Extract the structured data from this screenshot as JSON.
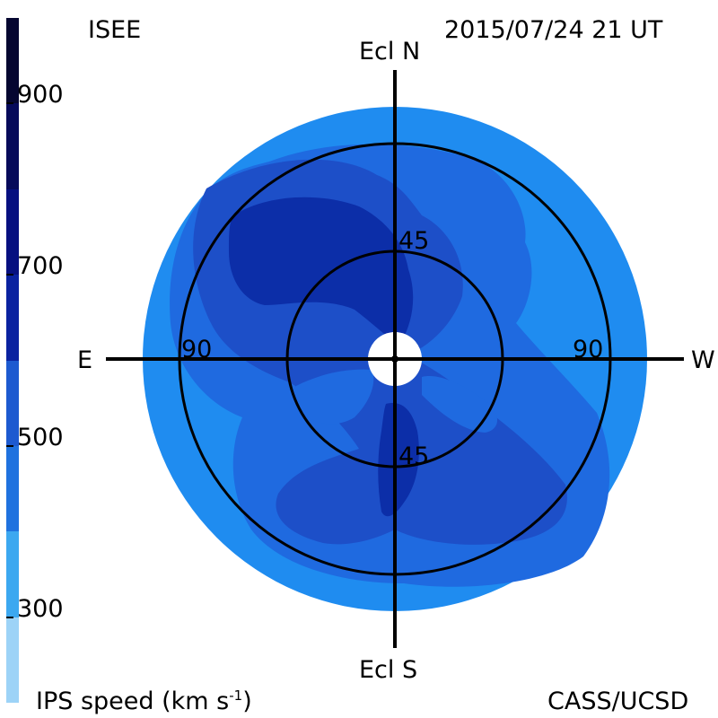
{
  "header": {
    "left_title": "ISEE",
    "datetime": "2015/07/24 21 UT"
  },
  "footer": {
    "left_label": "IPS speed (km s",
    "left_label_sup": "-1",
    "left_label_end": ")",
    "right_label": "CASS/UCSD"
  },
  "axes": {
    "north": "Ecl N",
    "south": "Ecl S",
    "east": "E",
    "west": "W",
    "ring_inner_top": "45",
    "ring_inner_bottom": "45",
    "ring_outer_left": "90",
    "ring_outer_right": "90"
  },
  "colorbar": {
    "min": 200,
    "max": 1000,
    "ticks": [
      {
        "label": "300",
        "value": 300
      },
      {
        "label": "500",
        "value": 500
      },
      {
        "label": "700",
        "value": 700
      },
      {
        "label": "900",
        "value": 900
      }
    ],
    "bands": [
      {
        "from": 200,
        "to": 300,
        "color": "#9dd3f7"
      },
      {
        "from": 300,
        "to": 400,
        "color": "#3ca8f0"
      },
      {
        "from": 400,
        "to": 500,
        "color": "#1f72df"
      },
      {
        "from": 500,
        "to": 600,
        "color": "#1d5ad0"
      },
      {
        "from": 600,
        "to": 700,
        "color": "#0a22a0"
      },
      {
        "from": 700,
        "to": 800,
        "color": "#061080"
      },
      {
        "from": 800,
        "to": 900,
        "color": "#060a5a"
      },
      {
        "from": 900,
        "to": 1000,
        "color": "#050630"
      }
    ]
  },
  "colors": {
    "background_disk": "#1f8cf0",
    "level_500": "#1f6ae0",
    "level_600": "#1d4fc8",
    "level_700": "#0c2ea8",
    "level_800": "#081a8c",
    "lines": "#000000"
  }
}
